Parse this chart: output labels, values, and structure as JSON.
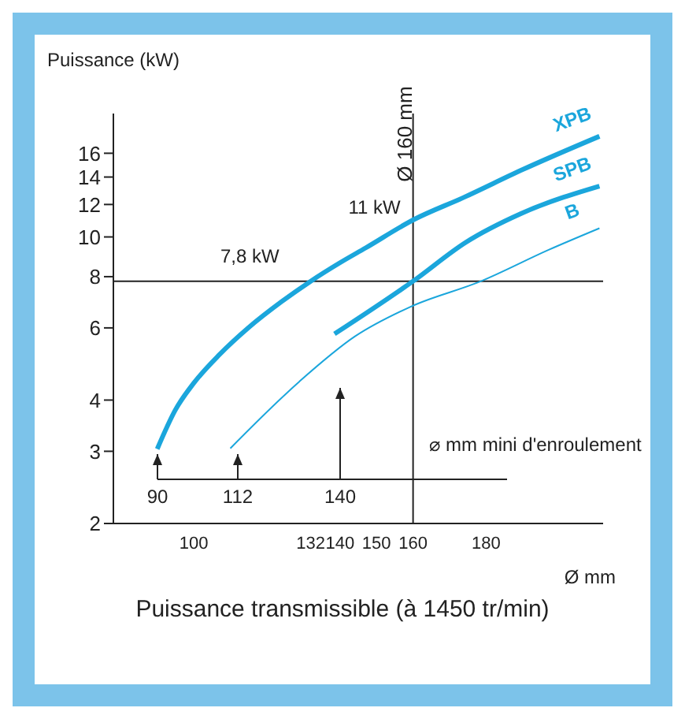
{
  "chart_data": {
    "type": "line",
    "ylabel": "Puissance (kW)",
    "xlabel": "Ø mm",
    "log": "y",
    "xlim": [
      78,
      212
    ],
    "xticks": [
      100,
      132,
      140,
      150,
      160,
      180
    ],
    "ylim": [
      2,
      20
    ],
    "yticks": [
      2,
      3,
      4,
      6,
      8,
      10,
      12,
      14,
      16
    ],
    "series": [
      {
        "name": "XPB",
        "color": "#1ba6dc",
        "x": [
          90,
          95,
          100,
          107,
          115,
          124,
          132,
          140,
          147,
          160,
          174,
          190,
          211
        ],
        "values": [
          3.04,
          3.79,
          4.4,
          5.16,
          6.01,
          6.95,
          7.8,
          8.65,
          9.4,
          11,
          12.5,
          14.6,
          17.6
        ]
      },
      {
        "name": "SPB",
        "color": "#1ba6dc",
        "x": [
          138.5,
          160,
          174.4,
          189.5,
          211
        ],
        "values": [
          5.8,
          7.8,
          9.7,
          11.4,
          13.3
        ]
      },
      {
        "name": "B",
        "color": "#1ba6dc",
        "x": [
          110,
          128.9,
          144.1,
          159.2,
          178.6,
          197.1,
          211
        ],
        "values": [
          3.05,
          4.44,
          5.72,
          6.75,
          7.8,
          9.3,
          10.5
        ]
      }
    ],
    "ref_lines": [
      {
        "axis": "y",
        "value": 7.8,
        "color": "#222222"
      },
      {
        "axis": "x",
        "value": 160,
        "label": "Ø 160 mm",
        "color": "#222222"
      }
    ],
    "annotations": [
      {
        "text": "11 kW",
        "x": 160,
        "y": 11
      },
      {
        "text": "7,8 kW",
        "x": 132,
        "y": 7.8
      },
      "90",
      "112",
      "140",
      "⌀ mm mini d'enroulement",
      "Puissance transmissible (à 1450 tr/min)"
    ],
    "grid": false,
    "marker": "none",
    "line_style": "solid"
  }
}
